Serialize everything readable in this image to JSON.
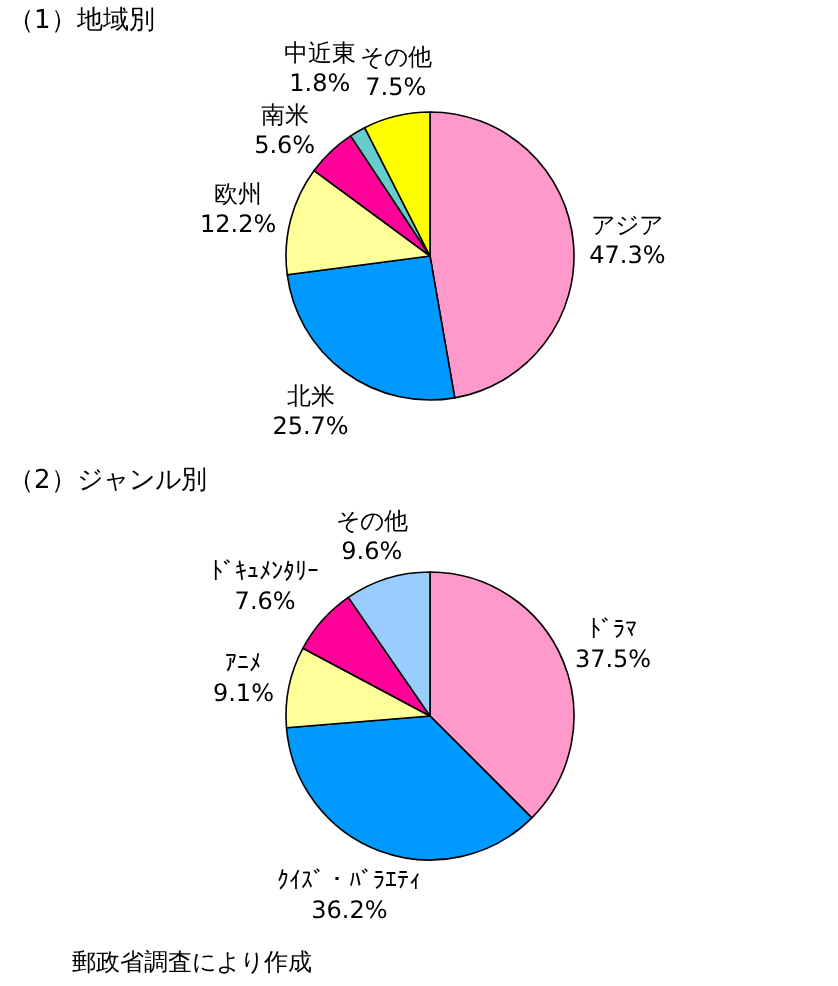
{
  "chart_data": [
    {
      "type": "pie",
      "title": "（1）地域別",
      "categories": [
        "アジア",
        "北米",
        "欧州",
        "南米",
        "中近東",
        "その他"
      ],
      "values": [
        47.3,
        25.7,
        12.2,
        5.6,
        1.8,
        7.5
      ],
      "value_labels": [
        "47.3%",
        "25.7%",
        "12.2%",
        "5.6%",
        "1.8%",
        "7.5%"
      ],
      "colors": [
        "#ff99cc",
        "#0099ff",
        "#ffff99",
        "#ff0099",
        "#66cccc",
        "#ffff00"
      ]
    },
    {
      "type": "pie",
      "title": "（2）ジャンル別",
      "categories": [
        "ﾄﾞﾗﾏ",
        "ｸｲｽﾞ・ﾊﾞﾗｴﾃｨ",
        "ｱﾆﾒ",
        "ﾄﾞｷｭﾒﾝﾀﾘｰ",
        "その他"
      ],
      "values": [
        37.5,
        36.2,
        9.1,
        7.6,
        9.6
      ],
      "value_labels": [
        "37.5%",
        "36.2%",
        "9.1%",
        "7.6%",
        "9.6%"
      ],
      "colors": [
        "#ff99cc",
        "#0099ff",
        "#ffff99",
        "#ff0099",
        "#99ccff"
      ],
      "annotations": [
        "郵政省調査により作成"
      ]
    }
  ]
}
